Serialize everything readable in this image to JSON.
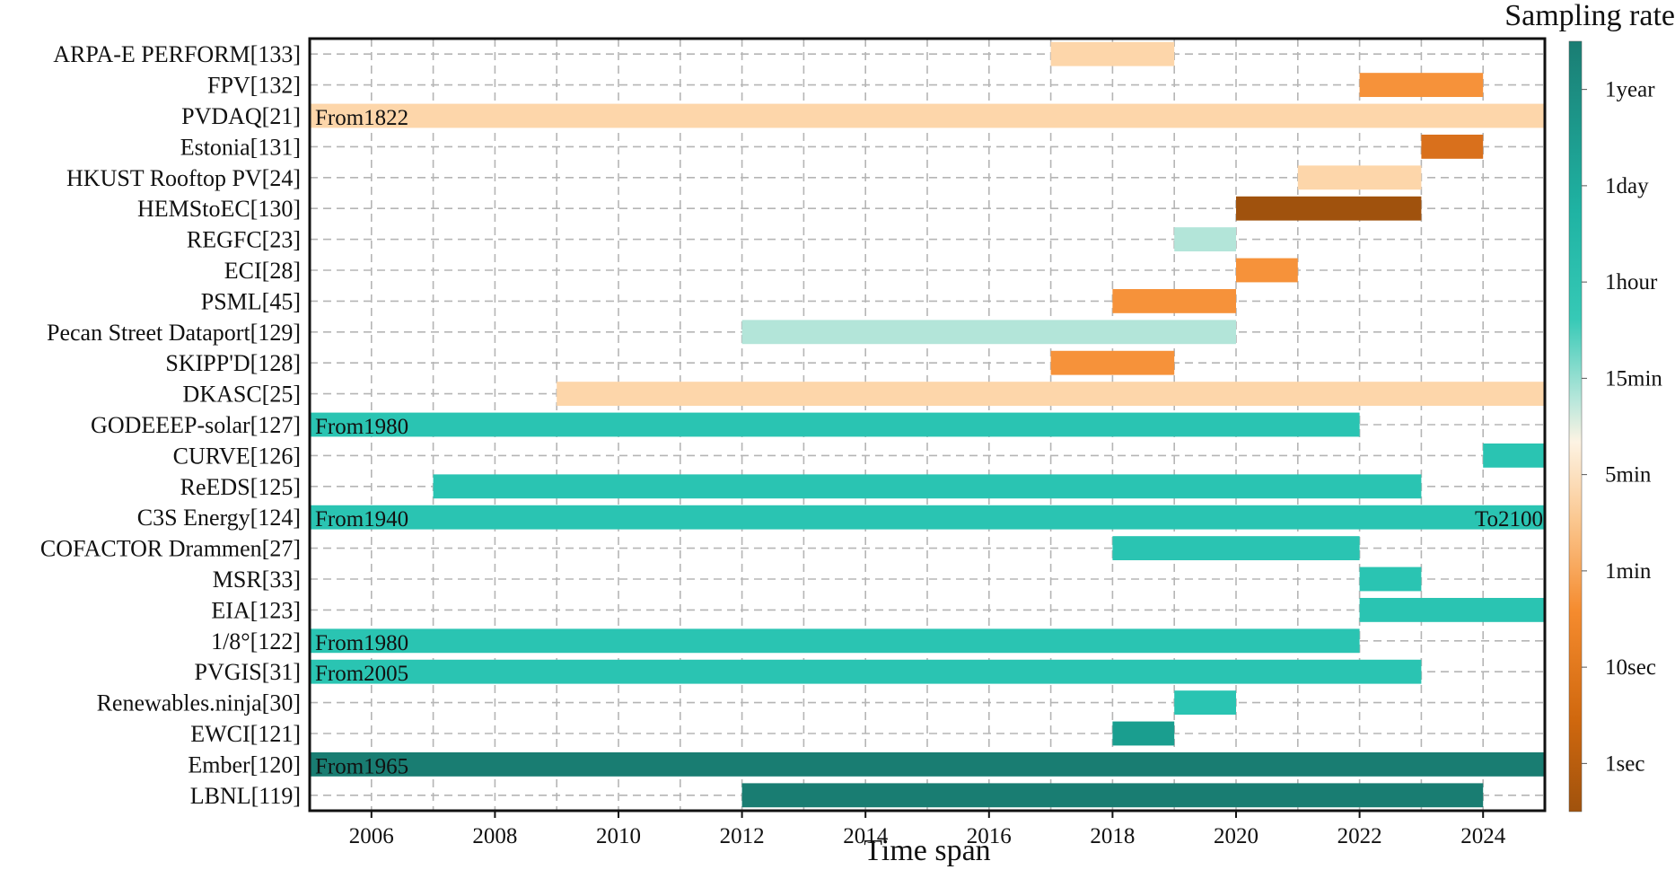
{
  "chart_data": {
    "type": "gantt",
    "xlabel": "Time span",
    "xlim": [
      2005,
      2025
    ],
    "xticks": [
      2006,
      2008,
      2010,
      2012,
      2014,
      2016,
      2018,
      2020,
      2022,
      2024
    ],
    "colorbar": {
      "title": "Sampling rate",
      "ticks": [
        "1year",
        "1day",
        "1hour",
        "15min",
        "5min",
        "1min",
        "10sec",
        "1sec"
      ],
      "colors": {
        "1year": "#197d72",
        "1day": "#1a9e8f",
        "1hour": "#2ac4b2",
        "15min": "#b3e5d9",
        "5min": "#fdd6aa",
        "1min": "#f6923a",
        "10sec": "#d9701c",
        "1sec": "#a0520d"
      }
    },
    "rows": [
      {
        "label": "ARPA-E PERFORM[133]",
        "start": 2017,
        "end": 2019,
        "rate": "5min",
        "start_text": "",
        "end_text": ""
      },
      {
        "label": "FPV[132]",
        "start": 2022,
        "end": 2024,
        "rate": "1min",
        "start_text": "",
        "end_text": ""
      },
      {
        "label": "PVDAQ[21]",
        "start": 2005,
        "end": 2025,
        "rate": "5min",
        "start_text": "From1822",
        "end_text": ""
      },
      {
        "label": "Estonia[131]",
        "start": 2023,
        "end": 2024,
        "rate": "10sec",
        "start_text": "",
        "end_text": ""
      },
      {
        "label": "HKUST Rooftop PV[24]",
        "start": 2021,
        "end": 2023,
        "rate": "5min",
        "start_text": "",
        "end_text": ""
      },
      {
        "label": "HEMStoEC[130]",
        "start": 2020,
        "end": 2023,
        "rate": "1sec",
        "start_text": "",
        "end_text": ""
      },
      {
        "label": "REGFC[23]",
        "start": 2019,
        "end": 2020,
        "rate": "15min",
        "start_text": "",
        "end_text": ""
      },
      {
        "label": "ECI[28]",
        "start": 2020,
        "end": 2021,
        "rate": "1min",
        "start_text": "",
        "end_text": ""
      },
      {
        "label": "PSML[45]",
        "start": 2018,
        "end": 2020,
        "rate": "1min",
        "start_text": "",
        "end_text": ""
      },
      {
        "label": "Pecan Street Dataport[129]",
        "start": 2012,
        "end": 2020,
        "rate": "15min",
        "start_text": "",
        "end_text": ""
      },
      {
        "label": "SKIPP'D[128]",
        "start": 2017,
        "end": 2019,
        "rate": "1min",
        "start_text": "",
        "end_text": ""
      },
      {
        "label": "DKASC[25]",
        "start": 2009,
        "end": 2025,
        "rate": "5min",
        "start_text": "",
        "end_text": ""
      },
      {
        "label": "GODEEEP-solar[127]",
        "start": 2005,
        "end": 2022,
        "rate": "1hour",
        "start_text": "From1980",
        "end_text": ""
      },
      {
        "label": "CURVE[126]",
        "start": 2024,
        "end": 2025,
        "rate": "1hour",
        "start_text": "",
        "end_text": ""
      },
      {
        "label": "ReEDS[125]",
        "start": 2007,
        "end": 2023,
        "rate": "1hour",
        "start_text": "",
        "end_text": ""
      },
      {
        "label": "C3S Energy[124]",
        "start": 2005,
        "end": 2025,
        "rate": "1hour",
        "start_text": "From1940",
        "end_text": "To2100"
      },
      {
        "label": "COFACTOR Drammen[27]",
        "start": 2018,
        "end": 2022,
        "rate": "1hour",
        "start_text": "",
        "end_text": ""
      },
      {
        "label": "MSR[33]",
        "start": 2022,
        "end": 2023,
        "rate": "1hour",
        "start_text": "",
        "end_text": ""
      },
      {
        "label": "EIA[123]",
        "start": 2022,
        "end": 2025,
        "rate": "1hour",
        "start_text": "",
        "end_text": ""
      },
      {
        "label": "1/8°[122]",
        "start": 2005,
        "end": 2022,
        "rate": "1hour",
        "start_text": "From1980",
        "end_text": ""
      },
      {
        "label": "PVGIS[31]",
        "start": 2005,
        "end": 2023,
        "rate": "1hour",
        "start_text": "From2005",
        "end_text": ""
      },
      {
        "label": "Renewables.ninja[30]",
        "start": 2019,
        "end": 2020,
        "rate": "1hour",
        "start_text": "",
        "end_text": ""
      },
      {
        "label": "EWCI[121]",
        "start": 2018,
        "end": 2019,
        "rate": "1day",
        "start_text": "",
        "end_text": ""
      },
      {
        "label": "Ember[120]",
        "start": 2005,
        "end": 2025,
        "rate": "1year",
        "start_text": "From1965",
        "end_text": ""
      },
      {
        "label": "LBNL[119]",
        "start": 2012,
        "end": 2024,
        "rate": "1year",
        "start_text": "",
        "end_text": ""
      }
    ]
  }
}
